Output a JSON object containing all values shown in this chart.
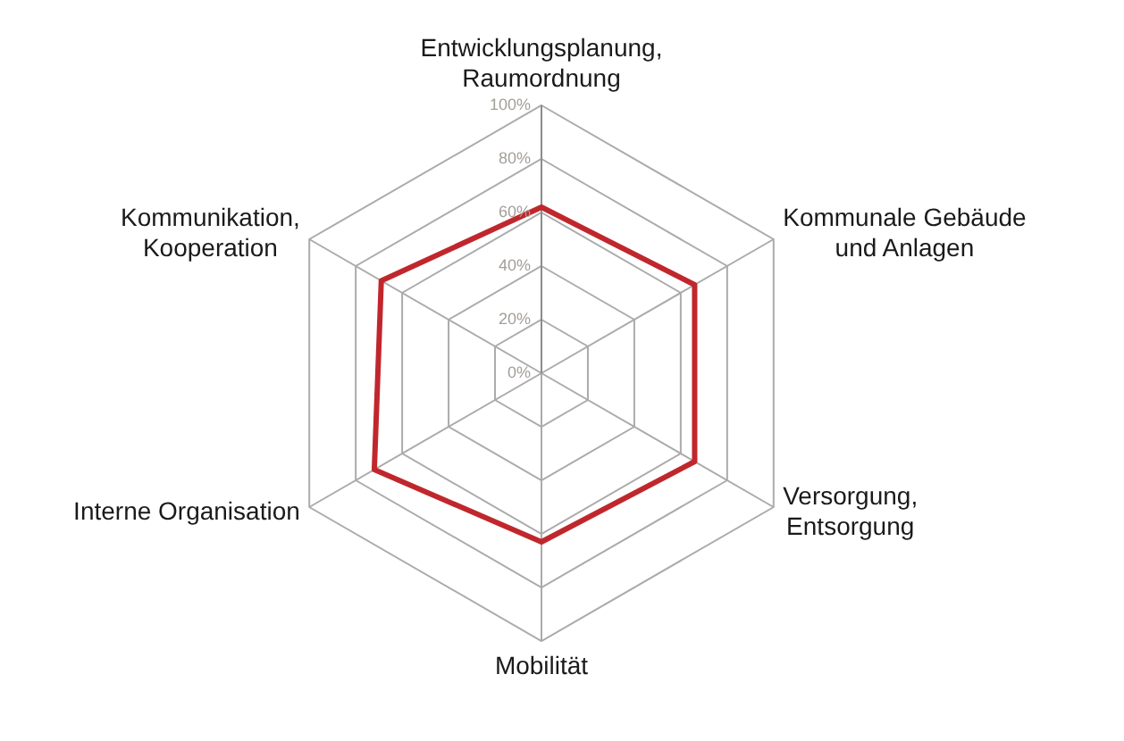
{
  "chart_data": {
    "type": "radar",
    "categories": [
      "Entwicklungsplanung,\nRaumordnung",
      "Kommunale Gebäude\nund Anlagen",
      "Versorgung,\nEntsorgung",
      "Mobilität",
      "Interne Organisation",
      "Kommunikation,\nKooperation"
    ],
    "series": [
      {
        "color": "#c0272d",
        "values": [
          62,
          66,
          66,
          63,
          72,
          69
        ]
      }
    ],
    "ylim": [
      0,
      100
    ],
    "yticks": [
      {
        "value": 0,
        "label": "0%"
      },
      {
        "value": 20,
        "label": "20%"
      },
      {
        "value": 40,
        "label": "40%"
      },
      {
        "value": 60,
        "label": "60%"
      },
      {
        "value": 80,
        "label": "80%"
      },
      {
        "value": 100,
        "label": "100%"
      }
    ],
    "grid": true,
    "marker": "none"
  }
}
